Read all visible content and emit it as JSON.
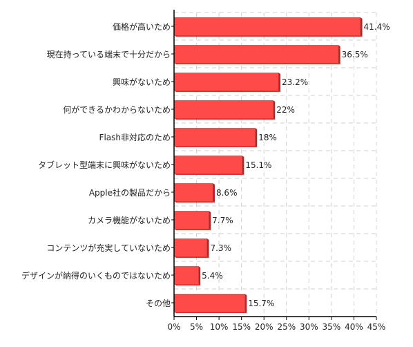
{
  "chart_data": {
    "type": "bar",
    "orientation": "horizontal",
    "title": "",
    "xlabel": "",
    "ylabel": "",
    "categories": [
      "価格が高いため",
      "現在持っている端末で十分だから",
      "興味がないため",
      "何ができるかわからないため",
      "Flash非対応のため",
      "タブレット型端末に興味がないため",
      "Apple社の製品だから",
      "カメラ機能がないため",
      "コンテンツが充実していないため",
      "デザインが納得のいくものではないため",
      "その他"
    ],
    "values": [
      41.4,
      36.5,
      23.2,
      22,
      18,
      15.1,
      8.6,
      7.7,
      7.3,
      5.4,
      15.7
    ],
    "value_labels": [
      "41.4%",
      "36.5%",
      "23.2%",
      "22%",
      "18%",
      "15.1%",
      "8.6%",
      "7.7%",
      "7.3%",
      "5.4%",
      "15.7%"
    ],
    "xlim": [
      0,
      45
    ],
    "xticks": [
      0,
      5,
      10,
      15,
      20,
      25,
      30,
      35,
      40,
      45
    ],
    "xtick_labels": [
      "0%",
      "5%",
      "10%",
      "15%",
      "20%",
      "25%",
      "30%",
      "35%",
      "40%",
      "45%"
    ],
    "grid": true,
    "legend": "none",
    "colors": {
      "bar": "#ff4a4a",
      "bar_edge": "#b32626",
      "grid": "#d0d0d0",
      "axis": "#000000"
    }
  }
}
